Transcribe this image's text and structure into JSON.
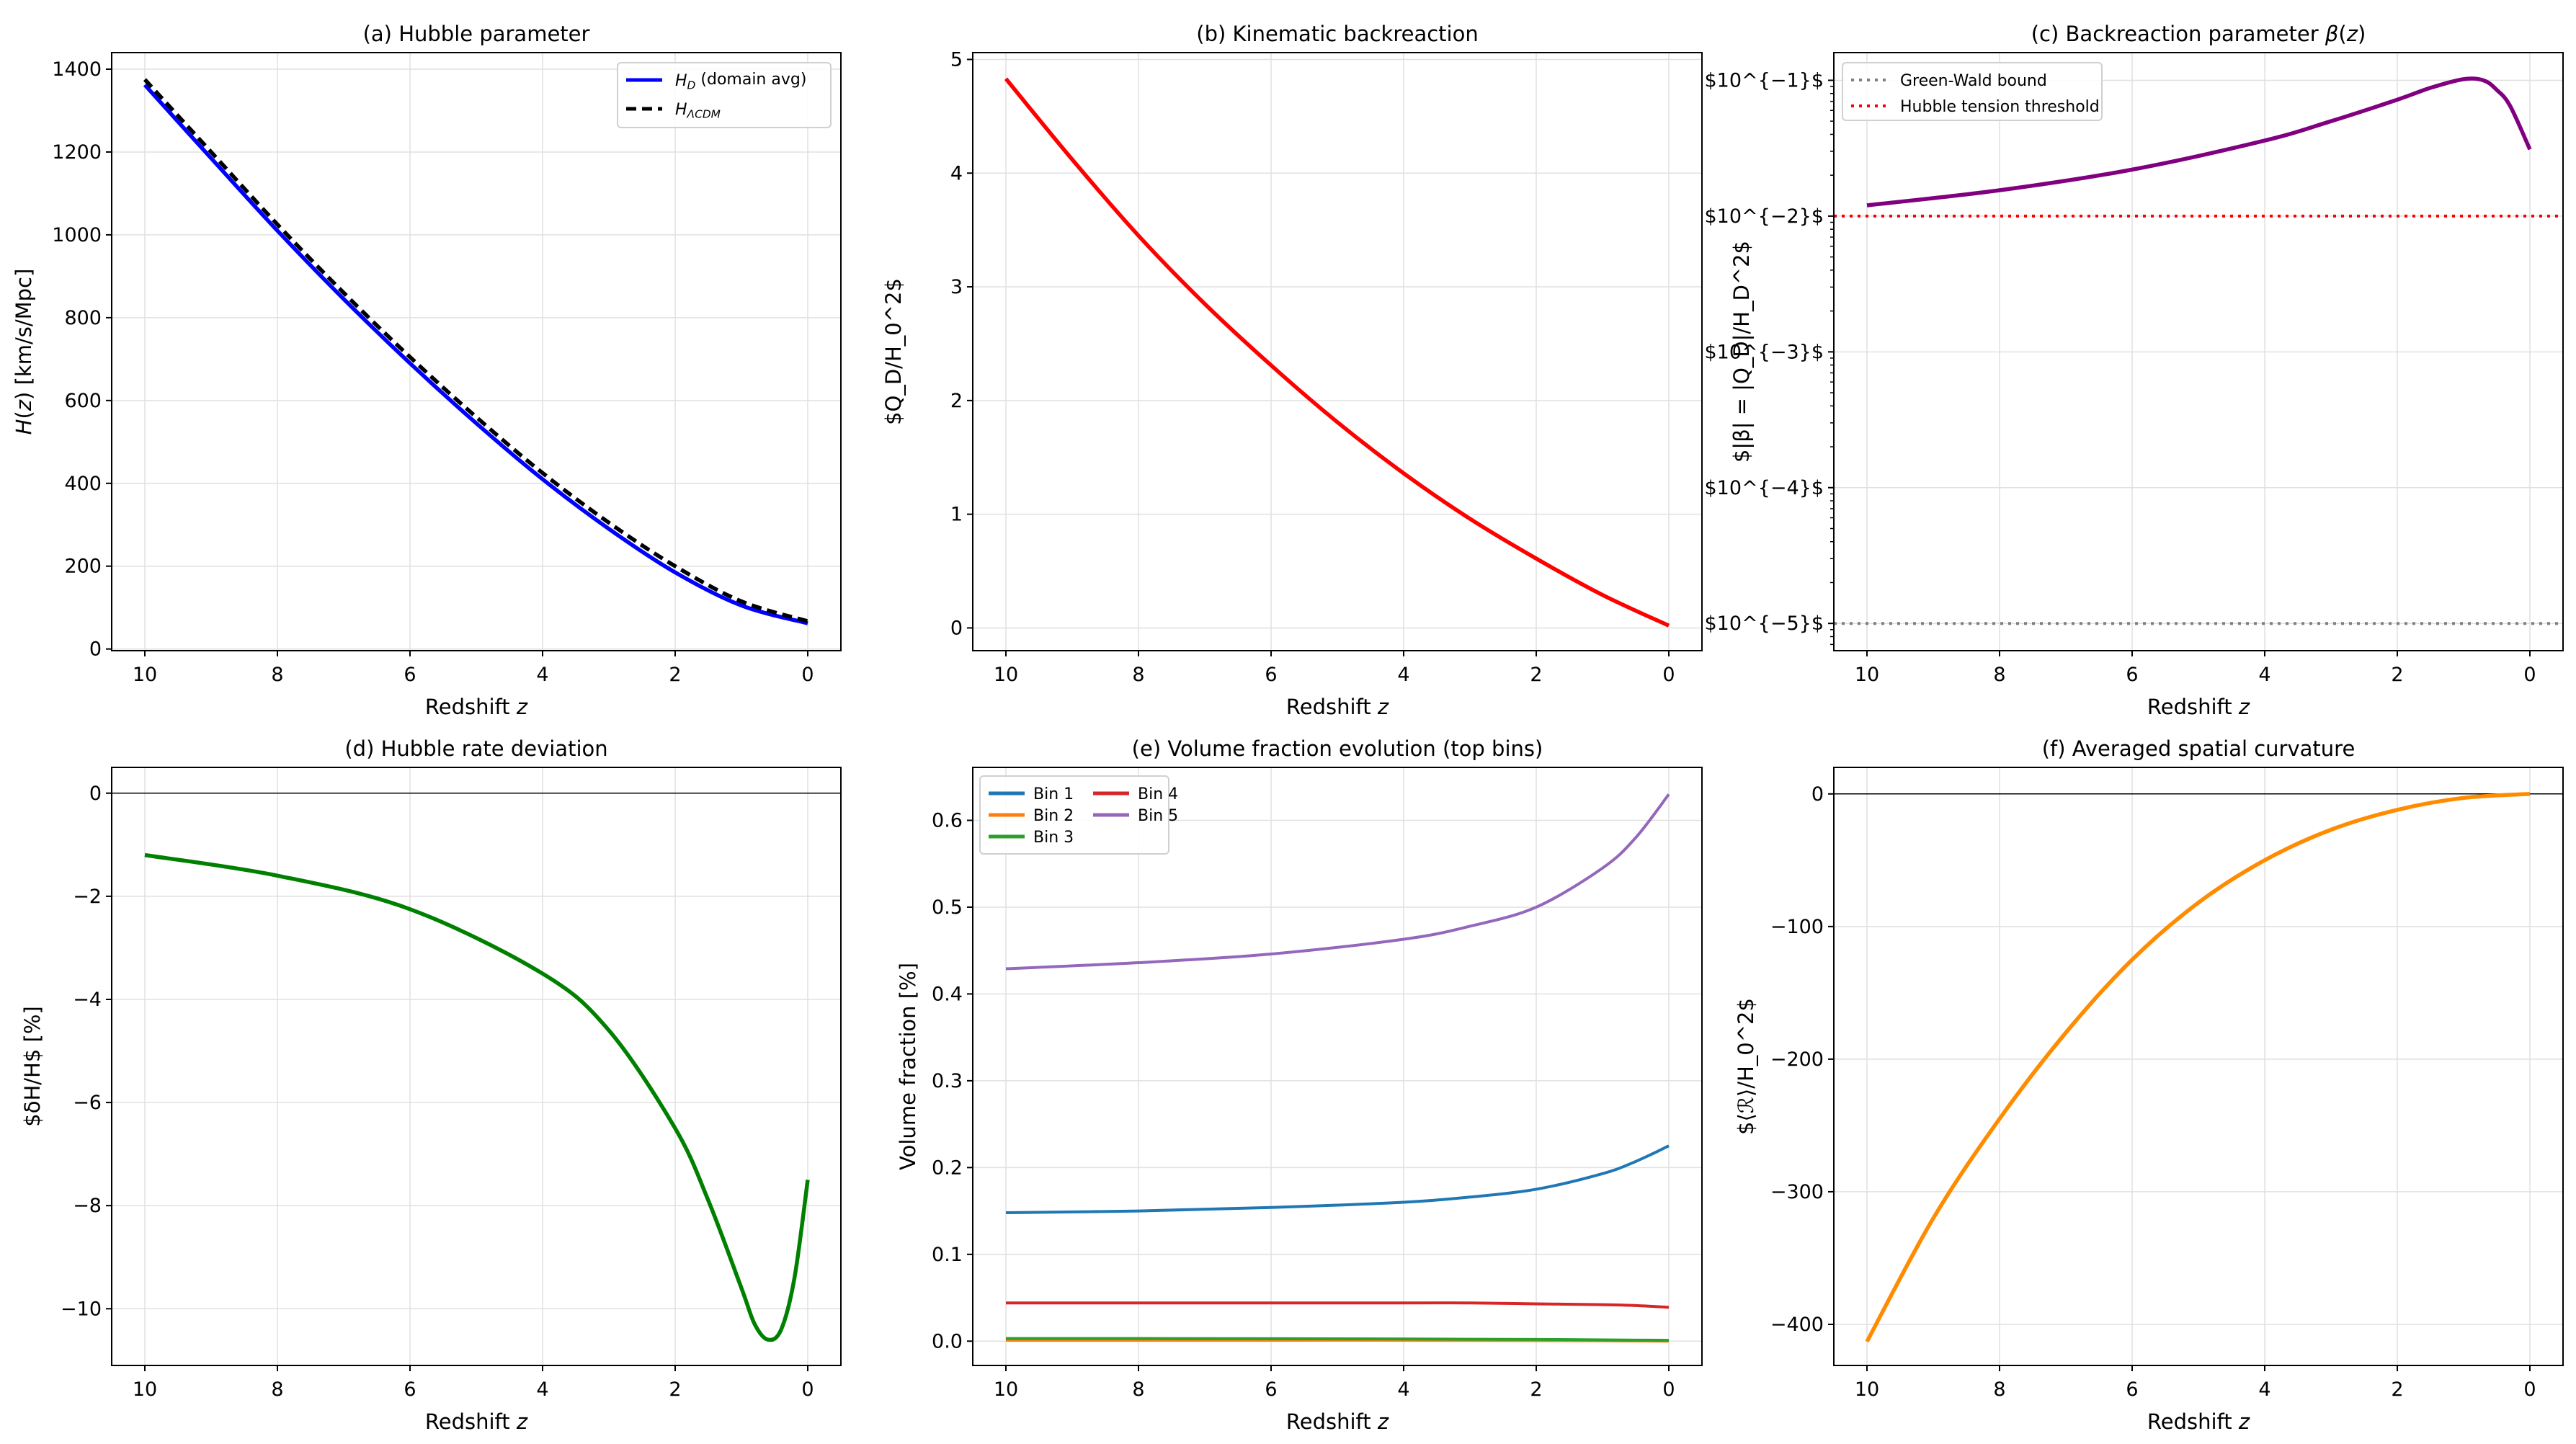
{
  "chart_data": [
    {
      "type": "line",
      "title": "(a) Hubble parameter",
      "xlabel": "Redshift $z$",
      "ylabel": "$H(z)$ [km/s/Mpc]",
      "xlim": [
        10.5,
        -0.5
      ],
      "ylim": [
        -4,
        1440
      ],
      "yscale": "linear",
      "xticks": [
        10,
        8,
        6,
        4,
        2,
        0
      ],
      "yticks": [
        0,
        200,
        400,
        600,
        800,
        1000,
        1200,
        1400
      ],
      "grid": true,
      "legend": "top-right",
      "x": [
        10,
        9,
        8,
        7,
        6,
        5,
        4,
        3,
        2,
        1,
        0
      ],
      "series": [
        {
          "name": "$H_D$ (domain avg)",
          "color": "#0000ff",
          "style": "solid",
          "values": [
            1362,
            1185,
            1010,
            845,
            690,
            545,
            410,
            290,
            185,
            105,
            62
          ]
        },
        {
          "name": "$H_{ΛCDM}$",
          "color": "#000000",
          "style": "dashed",
          "values": [
            1375,
            1200,
            1025,
            860,
            705,
            560,
            425,
            305,
            200,
            115,
            67
          ]
        }
      ]
    },
    {
      "type": "line",
      "title": "(b) Kinematic backreaction",
      "xlabel": "Redshift $z$",
      "ylabel": "$Q_D/H_0^2$",
      "xlim": [
        10.5,
        -0.5
      ],
      "ylim": [
        -0.2,
        5.06
      ],
      "yscale": "linear",
      "xticks": [
        10,
        8,
        6,
        4,
        2,
        0
      ],
      "yticks": [
        0,
        1,
        2,
        3,
        4,
        5
      ],
      "grid": true,
      "x": [
        10,
        9,
        8,
        7,
        6,
        5,
        4,
        3,
        2,
        1,
        0
      ],
      "series": [
        {
          "color": "#ff0000",
          "style": "solid",
          "values": [
            4.83,
            4.12,
            3.45,
            2.85,
            2.31,
            1.81,
            1.36,
            0.96,
            0.61,
            0.29,
            0.02
          ]
        }
      ]
    },
    {
      "type": "line",
      "title": "(c) Backreaction parameter $β(z)$",
      "xlabel": "Redshift $z$",
      "ylabel": "$|β| = |Q_D|/H_D^2$",
      "xlim": [
        10.5,
        -0.5
      ],
      "ylim": [
        6.3e-06,
        0.16
      ],
      "yscale": "log",
      "xticks": [
        10,
        8,
        6,
        4,
        2,
        0
      ],
      "yticks": [
        1e-05,
        0.0001,
        0.001,
        0.01,
        0.1
      ],
      "ytick_labels": [
        "$10^{−5}$",
        "$10^{−4}$",
        "$10^{−3}$",
        "$10^{−2}$",
        "$10^{−1}$"
      ],
      "grid": true,
      "legend": "top-left",
      "x": [
        10,
        8,
        6,
        4,
        3,
        2,
        1.5,
        1,
        0.7,
        0.5,
        0.3,
        0
      ],
      "series": [
        {
          "color": "#800080",
          "style": "solid",
          "values": [
            0.012,
            0.0155,
            0.022,
            0.036,
            0.05,
            0.072,
            0.088,
            0.102,
            0.1,
            0.085,
            0.065,
            0.031
          ]
        }
      ],
      "hlines": [
        {
          "name": "Green-Wald bound",
          "y": 1e-05,
          "color": "#808080",
          "style": "dotted"
        },
        {
          "name": "Hubble tension threshold",
          "y": 0.01,
          "color": "#ff0000",
          "style": "dotted"
        }
      ]
    },
    {
      "type": "line",
      "title": "(d) Hubble rate deviation",
      "xlabel": "Redshift $z$",
      "ylabel": "$δH/H$ [%]",
      "xlim": [
        10.5,
        -0.5
      ],
      "ylim": [
        -11.1,
        0.5
      ],
      "yscale": "linear",
      "xticks": [
        10,
        8,
        6,
        4,
        2,
        0
      ],
      "yticks": [
        -10,
        -8,
        -6,
        -4,
        -2,
        0
      ],
      "grid": true,
      "x": [
        10,
        8,
        6,
        4,
        3,
        2,
        1.5,
        1,
        0.8,
        0.6,
        0.4,
        0.2,
        0
      ],
      "series": [
        {
          "color": "#008000",
          "style": "solid",
          "values": [
            -1.2,
            -1.6,
            -2.25,
            -3.5,
            -4.6,
            -6.5,
            -7.9,
            -9.6,
            -10.3,
            -10.6,
            -10.4,
            -9.4,
            -7.5
          ]
        }
      ],
      "hlines": [
        {
          "y": 0,
          "color": "#000000",
          "style": "solid"
        }
      ]
    },
    {
      "type": "line",
      "title": "(e) Volume fraction evolution (top bins)",
      "xlabel": "Redshift $z$",
      "ylabel": "Volume fraction [%]",
      "xlim": [
        10.5,
        -0.5
      ],
      "ylim": [
        -0.028,
        0.661
      ],
      "yscale": "linear",
      "xticks": [
        10,
        8,
        6,
        4,
        2,
        0
      ],
      "yticks": [
        0.0,
        0.1,
        0.2,
        0.3,
        0.4,
        0.5,
        0.6
      ],
      "ytick_decimals": 1,
      "grid": true,
      "legend": "top-left",
      "x": [
        10,
        8,
        6,
        4,
        3,
        2,
        1,
        0.5,
        0
      ],
      "series": [
        {
          "name": "Bin 1",
          "color": "#1f77b4",
          "style": "solid",
          "values": [
            0.148,
            0.15,
            0.154,
            0.16,
            0.166,
            0.175,
            0.193,
            0.207,
            0.225
          ]
        },
        {
          "name": "Bin 2",
          "color": "#ff7f0e",
          "style": "solid",
          "values": [
            0.001,
            0.001,
            0.001,
            0.001,
            0.0008,
            0.0006,
            0.0004,
            0.0002,
            0.0
          ]
        },
        {
          "name": "Bin 3",
          "color": "#2ca02c",
          "style": "solid",
          "values": [
            0.003,
            0.003,
            0.0028,
            0.0025,
            0.0022,
            0.002,
            0.0015,
            0.0012,
            0.001
          ]
        },
        {
          "name": "Bin 4",
          "color": "#d62728",
          "style": "solid",
          "values": [
            0.044,
            0.044,
            0.044,
            0.044,
            0.044,
            0.043,
            0.042,
            0.041,
            0.039
          ]
        },
        {
          "name": "Bin 5",
          "color": "#9467bd",
          "style": "solid",
          "values": [
            0.429,
            0.436,
            0.446,
            0.463,
            0.478,
            0.5,
            0.545,
            0.58,
            0.63
          ]
        }
      ]
    },
    {
      "type": "line",
      "title": "(f) Averaged spatial curvature",
      "xlabel": "Redshift $z$",
      "ylabel": "$⟨ℛ⟩/H_0^2$",
      "xlim": [
        10.5,
        -0.5
      ],
      "ylim": [
        -431,
        20
      ],
      "yscale": "linear",
      "xticks": [
        10,
        8,
        6,
        4,
        2,
        0
      ],
      "yticks": [
        -400,
        -300,
        -200,
        -100,
        0
      ],
      "grid": true,
      "x": [
        10,
        9,
        8,
        7,
        6,
        5,
        4,
        3,
        2,
        1,
        0
      ],
      "series": [
        {
          "color": "#ff8c00",
          "style": "solid",
          "values": [
            -413,
            -320,
            -245,
            -180,
            -125,
            -82,
            -50,
            -27,
            -12,
            -3,
            0
          ]
        }
      ],
      "hlines": [
        {
          "y": 0,
          "color": "#000000",
          "style": "solid"
        }
      ]
    }
  ]
}
